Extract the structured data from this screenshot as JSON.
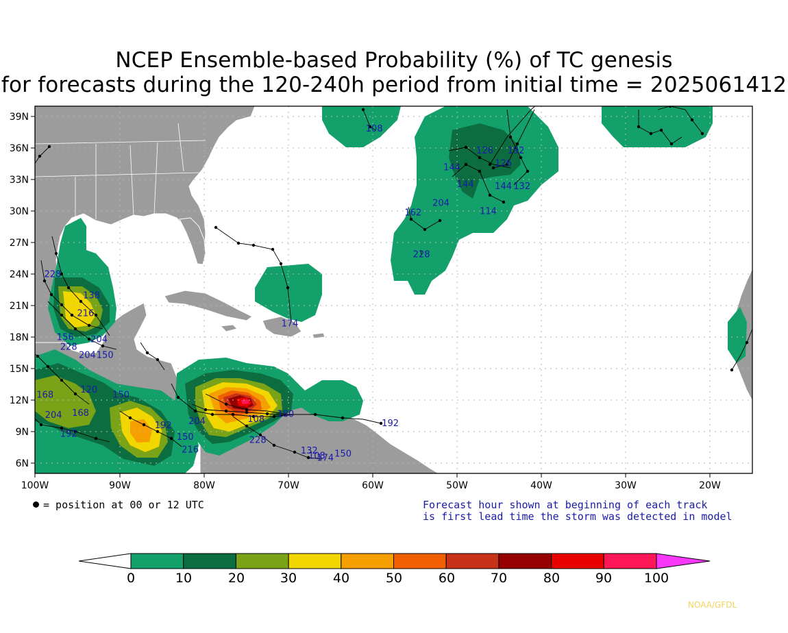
{
  "title": {
    "line1": "NCEP Ensemble-based Probability (%) of TC genesis",
    "line2": "for forecasts during the 120-240h period from initial time = 2025061412"
  },
  "axes": {
    "lon_labels": [
      "100W",
      "90W",
      "80W",
      "70W",
      "60W",
      "50W",
      "40W",
      "30W",
      "20W"
    ],
    "lat_labels": [
      "39N",
      "36N",
      "33N",
      "30N",
      "27N",
      "24N",
      "21N",
      "18N",
      "15N",
      "12N",
      "9N",
      "6N"
    ]
  },
  "notes": {
    "left": "= position at 00 or 12 UTC",
    "right1": "Forecast hour shown at beginning of each track",
    "right2": "is first lead time the storm was detected in model"
  },
  "colorbar": {
    "labels": [
      "0",
      "10",
      "20",
      "30",
      "40",
      "50",
      "60",
      "70",
      "80",
      "90",
      "100"
    ],
    "colors": [
      "#14a06b",
      "#0c6e40",
      "#7aa318",
      "#f2d600",
      "#f59f00",
      "#f25f00",
      "#c83218",
      "#960000",
      "#e80000",
      "#ff1858",
      "#f838f8"
    ]
  },
  "track_labels": [
    {
      "text": "108",
      "lon": -59.8,
      "lat": 37.6
    },
    {
      "text": "126",
      "lon": -46.7,
      "lat": 35.5
    },
    {
      "text": "192",
      "lon": -43.0,
      "lat": 35.5
    },
    {
      "text": "126",
      "lon": -44.5,
      "lat": 34.3
    },
    {
      "text": "144",
      "lon": -50.6,
      "lat": 33.9
    },
    {
      "text": "144",
      "lon": -49.0,
      "lat": 32.3
    },
    {
      "text": "144",
      "lon": -44.5,
      "lat": 32.1
    },
    {
      "text": "132",
      "lon": -42.3,
      "lat": 32.1
    },
    {
      "text": "204",
      "lon": -51.9,
      "lat": 30.5
    },
    {
      "text": "114",
      "lon": -46.3,
      "lat": 29.7
    },
    {
      "text": "162",
      "lon": -55.2,
      "lat": 29.6
    },
    {
      "text": "228",
      "lon": -54.2,
      "lat": 25.6
    },
    {
      "text": "228",
      "lon": -97.9,
      "lat": 23.7
    },
    {
      "text": "138",
      "lon": -93.3,
      "lat": 21.7
    },
    {
      "text": "216",
      "lon": -94.0,
      "lat": 20.0
    },
    {
      "text": "174",
      "lon": -69.8,
      "lat": 19.0
    },
    {
      "text": "156",
      "lon": -96.4,
      "lat": 17.7
    },
    {
      "text": "204",
      "lon": -92.4,
      "lat": 17.5
    },
    {
      "text": "228",
      "lon": -96.0,
      "lat": 16.8
    },
    {
      "text": "150",
      "lon": -91.7,
      "lat": 16.0
    },
    {
      "text": "204",
      "lon": -93.8,
      "lat": 16.0
    },
    {
      "text": "120",
      "lon": -93.6,
      "lat": 12.7
    },
    {
      "text": "168",
      "lon": -98.8,
      "lat": 12.2
    },
    {
      "text": "150",
      "lon": -89.8,
      "lat": 12.2
    },
    {
      "text": "168",
      "lon": -94.6,
      "lat": 10.5
    },
    {
      "text": "204",
      "lon": -97.8,
      "lat": 10.3
    },
    {
      "text": "192",
      "lon": -96.0,
      "lat": 8.5
    },
    {
      "text": "192",
      "lon": -84.8,
      "lat": 9.3
    },
    {
      "text": "204",
      "lon": -80.8,
      "lat": 9.7
    },
    {
      "text": "150",
      "lon": -82.2,
      "lat": 8.2
    },
    {
      "text": "216",
      "lon": -81.6,
      "lat": 7.0
    },
    {
      "text": "192",
      "lon": -57.9,
      "lat": 9.5
    },
    {
      "text": "228",
      "lon": -73.6,
      "lat": 7.9
    },
    {
      "text": "108",
      "lon": -73.8,
      "lat": 9.9
    },
    {
      "text": "180",
      "lon": -70.3,
      "lat": 10.4
    },
    {
      "text": "132",
      "lon": -67.5,
      "lat": 6.9
    },
    {
      "text": "150",
      "lon": -63.5,
      "lat": 6.6
    },
    {
      "text": "174",
      "lon": -65.6,
      "lat": 6.2
    },
    {
      "text": "108",
      "lon": -66.6,
      "lat": 6.4
    }
  ]
}
